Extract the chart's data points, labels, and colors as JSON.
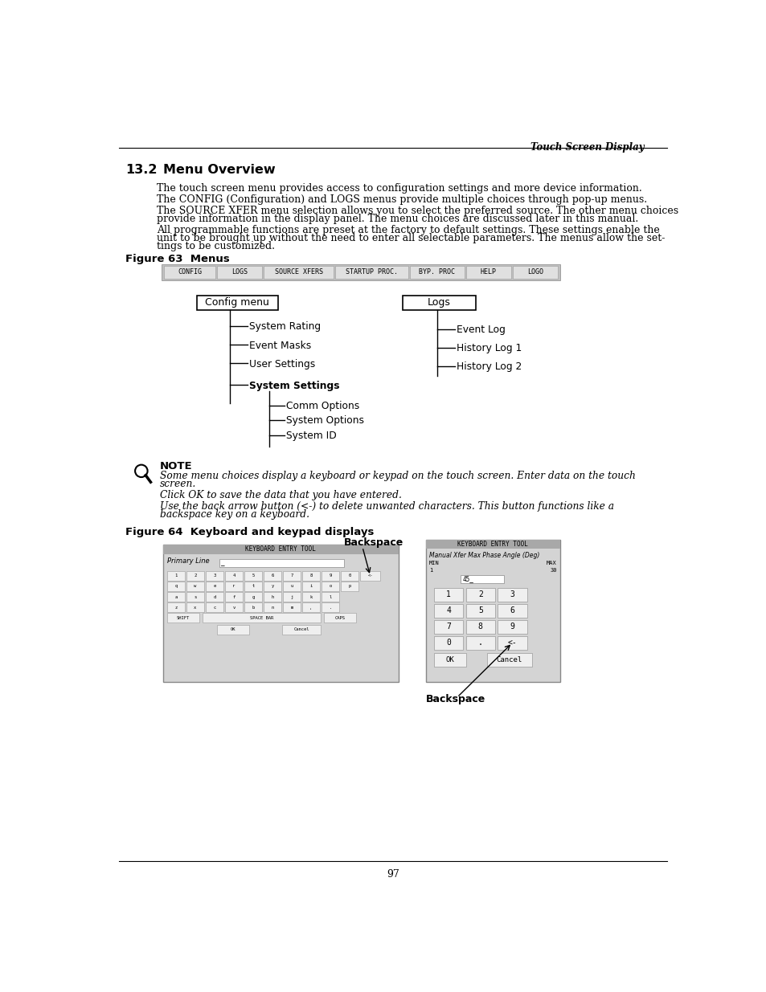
{
  "page_bg": "#ffffff",
  "header_text": "Touch Screen Display",
  "section_num": "13.2",
  "section_name": "Menu Overview",
  "para1": "The touch screen menu provides access to configuration settings and more device information.",
  "para2": "The CONFIG (Configuration) and LOGS menus provide multiple choices through pop-up menus.",
  "para3a": "The SOURCE XFER menu selection allows you to select the preferred source. The other menu choices",
  "para3b": "provide information in the display panel. The menu choices are discussed later in this manual.",
  "para4a": "All programmable functions are preset at the factory to default settings. These settings enable the",
  "para4b": "unit to be brought up without the need to enter all selectable parameters. The menus allow the set-",
  "para4c": "tings to be customized.",
  "fig63_label": "Figure 63  Menus",
  "menu_bar_items": [
    "CONFIG",
    "LOGS",
    "SOURCE XFERS",
    "STARTUP PROC.",
    "BYP. PROC",
    "HELP",
    "LOGO"
  ],
  "menu_bar_widths": [
    85,
    75,
    115,
    120,
    90,
    75,
    75
  ],
  "config_menu_label": "Config menu",
  "logs_label": "Logs",
  "config_items": [
    "System Rating",
    "Event Masks",
    "User Settings",
    "System Settings"
  ],
  "config_sub_items": [
    "Comm Options",
    "System Options",
    "System ID"
  ],
  "logs_items": [
    "Event Log",
    "History Log 1",
    "History Log 2"
  ],
  "note_title": "NOTE",
  "note_line1": "Some menu choices display a keyboard or keypad on the touch screen. Enter data on the touch",
  "note_line2": "screen.",
  "note_line3": "Click OK to save the data that you have entered.",
  "note_line4": "Use the back arrow button (<-) to delete unwanted characters. This button functions like a",
  "note_line5": "backspace key on a keyboard.",
  "fig64_label": "Figure 64  Keyboard and keypad displays",
  "backspace_label_top": "Backspace",
  "backspace_label_bot": "Backspace",
  "kb_title": "KEYBOARD ENTRY TOOL",
  "kb_primary_line": "Primary Line",
  "kb_rows": [
    [
      "1",
      "2",
      "3",
      "4",
      "5",
      "6",
      "7",
      "8",
      "9",
      "0",
      "<-"
    ],
    [
      "q",
      "w",
      "e",
      "r",
      "t",
      "y",
      "u",
      "i",
      "o",
      "p"
    ],
    [
      "a",
      "s",
      "d",
      "f",
      "g",
      "h",
      "j",
      "k",
      "l"
    ],
    [
      "z",
      "x",
      "c",
      "v",
      "b",
      "n",
      "m",
      ",",
      "."
    ]
  ],
  "kb_bottom": [
    "SHIFT",
    "SPACE BAR",
    "CAPS"
  ],
  "np_title": "KEYBOARD ENTRY TOOL",
  "np_subtitle": "Manual Xfer Max Phase Angle (Deg)",
  "np_min": "MIN",
  "np_max": "MAX",
  "np_min_val": "1",
  "np_max_val": "30",
  "np_input": "45_",
  "np_rows": [
    [
      "1",
      "2",
      "3"
    ],
    [
      "4",
      "5",
      "6"
    ],
    [
      "7",
      "8",
      "9"
    ],
    [
      "0",
      ".",
      "<-"
    ]
  ],
  "page_number": "97",
  "text_color": "#000000"
}
